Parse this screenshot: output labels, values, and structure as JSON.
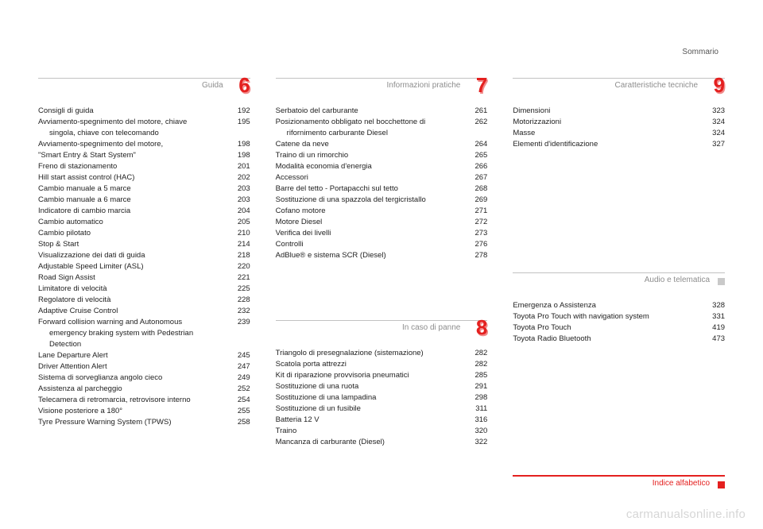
{
  "header_right": "Sommario",
  "watermark": "carmanualsonline.info",
  "sections": {
    "s6": {
      "title": "Guida",
      "number": "6",
      "accent": "#e4201f",
      "entries": [
        {
          "label": "Consigli di guida",
          "page": "192"
        },
        {
          "label": "Avviamento-spegnimento del motore, chiave singola, chiave con telecomando",
          "page": "195",
          "wrap": true
        },
        {
          "label": "Avviamento-spegnimento del motore,",
          "page": "198"
        },
        {
          "label": " \"Smart Entry & Start System\"",
          "page": "198"
        },
        {
          "label": "Freno di stazionamento",
          "page": "201"
        },
        {
          "label": "Hill start assist control (HAC)",
          "page": "202"
        },
        {
          "label": "Cambio manuale a 5 marce",
          "page": "203"
        },
        {
          "label": "Cambio manuale a 6 marce",
          "page": "203"
        },
        {
          "label": "Indicatore di cambio marcia",
          "page": "204"
        },
        {
          "label": "Cambio automatico",
          "page": "205"
        },
        {
          "label": "Cambio pilotato",
          "page": "210"
        },
        {
          "label": "Stop & Start",
          "page": "214"
        },
        {
          "label": "Visualizzazione dei dati di guida",
          "page": "218"
        },
        {
          "label": "Adjustable Speed Limiter (ASL)",
          "page": "220"
        },
        {
          "label": "Road Sign Assist",
          "page": "221"
        },
        {
          "label": "Limitatore di velocità",
          "page": "225"
        },
        {
          "label": "Regolatore di velocità",
          "page": "228"
        },
        {
          "label": "Adaptive Cruise Control",
          "page": "232"
        },
        {
          "label": "Forward collision warning and Autonomous emergency braking system with Pedestrian Detection",
          "page": "239",
          "wrap": true
        },
        {
          "label": "Lane Departure Alert",
          "page": "245"
        },
        {
          "label": "Driver Attention Alert",
          "page": "247"
        },
        {
          "label": "Sistema di sorveglianza angolo cieco",
          "page": "249"
        },
        {
          "label": "Assistenza al parcheggio",
          "page": "252"
        },
        {
          "label": "Telecamera di retromarcia, retrovisore interno",
          "page": "254",
          "wrap": true
        },
        {
          "label": "Visione posteriore a 180°",
          "page": "255"
        },
        {
          "label": "Tyre Pressure Warning System (TPWS)",
          "page": "258"
        }
      ]
    },
    "s7": {
      "title": "Informazioni pratiche",
      "number": "7",
      "accent": "#e4201f",
      "entries": [
        {
          "label": "Serbatoio del carburante",
          "page": "261"
        },
        {
          "label": "Posizionamento obbligato nel bocchettone di rifornimento carburante Diesel",
          "page": "262",
          "wrap": true
        },
        {
          "label": "Catene da neve",
          "page": "264"
        },
        {
          "label": "Traino di un rimorchio",
          "page": "265"
        },
        {
          "label": "Modalità economia d'energia",
          "page": "266"
        },
        {
          "label": "Accessori",
          "page": "267"
        },
        {
          "label": "Barre del tetto - Portapacchi sul tetto",
          "page": "268"
        },
        {
          "label": "Sostituzione di una spazzola del tergicristallo",
          "page": "269",
          "wrap": true
        },
        {
          "label": "Cofano motore",
          "page": "271"
        },
        {
          "label": "Motore Diesel",
          "page": "272"
        },
        {
          "label": "Verifica dei livelli",
          "page": "273"
        },
        {
          "label": "Controlli",
          "page": "276"
        },
        {
          "label": "AdBlue® e sistema SCR (Diesel)",
          "page": "278"
        }
      ]
    },
    "s8": {
      "title": "In caso di panne",
      "number": "8",
      "accent": "#e4201f",
      "entries": [
        {
          "label": "Triangolo di presegnalazione (sistemazione)",
          "page": "282",
          "wrap": true
        },
        {
          "label": "Scatola porta attrezzi",
          "page": "282"
        },
        {
          "label": "Kit di riparazione provvisoria pneumatici",
          "page": "285"
        },
        {
          "label": "Sostituzione di una ruota",
          "page": "291"
        },
        {
          "label": "Sostituzione di una lampadina",
          "page": "298"
        },
        {
          "label": "Sostituzione di un fusibile",
          "page": "311"
        },
        {
          "label": "Batteria 12 V",
          "page": "316"
        },
        {
          "label": "Traino",
          "page": "320"
        },
        {
          "label": "Mancanza di carburante (Diesel)",
          "page": "322"
        }
      ]
    },
    "s9": {
      "title": "Caratteristiche tecniche",
      "number": "9",
      "accent": "#e4201f",
      "entries": [
        {
          "label": "Dimensioni",
          "page": "323"
        },
        {
          "label": "Motorizzazioni",
          "page": "324"
        },
        {
          "label": "Masse",
          "page": "324"
        },
        {
          "label": "Elementi d'identificazione",
          "page": "327"
        }
      ]
    },
    "sAudio": {
      "title": "Audio e telematica",
      "marker": "dot-grey",
      "entries": [
        {
          "label": "Emergenza o Assistenza",
          "page": "328"
        },
        {
          "label": "Toyota Pro Touch with navigation system",
          "page": "331"
        },
        {
          "label": "Toyota Pro Touch",
          "page": "419"
        },
        {
          "label": "Toyota Radio Bluetooth",
          "page": "473"
        }
      ]
    },
    "sIndex": {
      "title": "Indice alfabetico",
      "marker": "dot-red"
    }
  }
}
